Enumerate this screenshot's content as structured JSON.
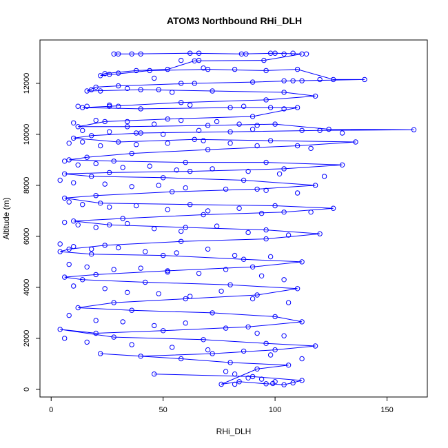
{
  "chart_data": {
    "type": "scatter",
    "title": "ATOM3 Northbound RHi_DLH",
    "xlabel": "RHi_DLH",
    "ylabel": "Altitude (m)",
    "xlim": [
      -5,
      168
    ],
    "ylim": [
      -300,
      13700
    ],
    "xticks": [
      0,
      50,
      100,
      150
    ],
    "yticks": [
      0,
      2000,
      4000,
      6000,
      8000,
      10000,
      12000
    ],
    "grid": false,
    "legend": "none",
    "series": [
      {
        "color": "#0000ff",
        "mode": "lines+markers",
        "points": [
          [
            28,
            13150
          ],
          [
            36,
            13150
          ],
          [
            62,
            13180
          ],
          [
            85,
            13150
          ],
          [
            100,
            13180
          ],
          [
            112,
            13150
          ],
          [
            95,
            12900
          ],
          [
            64,
            12880
          ],
          [
            52,
            12550
          ],
          [
            38,
            12500
          ],
          [
            24,
            12380
          ],
          [
            22,
            12300
          ],
          [
            44,
            12500
          ],
          [
            70,
            12550
          ],
          [
            96,
            12500
          ],
          [
            110,
            12550
          ],
          [
            126,
            12150
          ],
          [
            140,
            12150
          ],
          [
            108,
            12100
          ],
          [
            90,
            12050
          ],
          [
            64,
            12000
          ],
          [
            30,
            11900
          ],
          [
            20,
            11850
          ],
          [
            16,
            11700
          ],
          [
            40,
            11750
          ],
          [
            72,
            11700
          ],
          [
            104,
            11650
          ],
          [
            118,
            11500
          ],
          [
            96,
            11350
          ],
          [
            58,
            11250
          ],
          [
            26,
            11100
          ],
          [
            14,
            11050
          ],
          [
            40,
            11000
          ],
          [
            80,
            11050
          ],
          [
            110,
            11050
          ],
          [
            90,
            10700
          ],
          [
            52,
            10600
          ],
          [
            24,
            10500
          ],
          [
            12,
            10300
          ],
          [
            34,
            10300
          ],
          [
            70,
            10350
          ],
          [
            100,
            10400
          ],
          [
            124,
            10200
          ],
          [
            162,
            10180
          ],
          [
            120,
            10150
          ],
          [
            80,
            10100
          ],
          [
            40,
            10050
          ],
          [
            18,
            9950
          ],
          [
            10,
            9850
          ],
          [
            30,
            9700
          ],
          [
            64,
            9800
          ],
          [
            98,
            9750
          ],
          [
            136,
            9700
          ],
          [
            110,
            9550
          ],
          [
            70,
            9400
          ],
          [
            36,
            9250
          ],
          [
            16,
            9100
          ],
          [
            8,
            9000
          ],
          [
            28,
            8950
          ],
          [
            60,
            8900
          ],
          [
            96,
            8900
          ],
          [
            130,
            8800
          ],
          [
            104,
            8650
          ],
          [
            62,
            8550
          ],
          [
            26,
            8500
          ],
          [
            6,
            8450
          ],
          [
            18,
            8350
          ],
          [
            50,
            8300
          ],
          [
            86,
            8200
          ],
          [
            118,
            8000
          ],
          [
            92,
            7850
          ],
          [
            54,
            7750
          ],
          [
            20,
            7600
          ],
          [
            6,
            7500
          ],
          [
            22,
            7300
          ],
          [
            62,
            7250
          ],
          [
            100,
            7200
          ],
          [
            126,
            7100
          ],
          [
            104,
            6950
          ],
          [
            68,
            6850
          ],
          [
            32,
            6700
          ],
          [
            10,
            6600
          ],
          [
            26,
            6450
          ],
          [
            60,
            6350
          ],
          [
            96,
            6250
          ],
          [
            120,
            6100
          ],
          [
            96,
            5900
          ],
          [
            58,
            5800
          ],
          [
            24,
            5650
          ],
          [
            8,
            5500
          ],
          [
            4,
            5400
          ],
          [
            18,
            5300
          ],
          [
            50,
            5250
          ],
          [
            86,
            5100
          ],
          [
            112,
            5000
          ],
          [
            90,
            4800
          ],
          [
            52,
            4650
          ],
          [
            20,
            4500
          ],
          [
            6,
            4400
          ],
          [
            14,
            4300
          ],
          [
            42,
            4200
          ],
          [
            80,
            4100
          ],
          [
            110,
            3950
          ],
          [
            92,
            3700
          ],
          [
            60,
            3550
          ],
          [
            28,
            3400
          ],
          [
            12,
            3200
          ],
          [
            36,
            3100
          ],
          [
            72,
            3000
          ],
          [
            100,
            2850
          ],
          [
            112,
            2650
          ],
          [
            88,
            2450
          ],
          [
            50,
            2300
          ],
          [
            20,
            2200
          ],
          [
            4,
            2350
          ],
          [
            28,
            2050
          ],
          [
            68,
            1950
          ],
          [
            96,
            1800
          ],
          [
            118,
            1700
          ],
          [
            100,
            1550
          ],
          [
            72,
            1400
          ],
          [
            40,
            1300
          ],
          [
            22,
            1400
          ],
          [
            58,
            1200
          ],
          [
            80,
            1050
          ],
          [
            106,
            950
          ],
          [
            92,
            800
          ],
          [
            76,
            200
          ],
          [
            84,
            300
          ],
          [
            96,
            220
          ],
          [
            104,
            180
          ],
          [
            112,
            350
          ],
          [
            90,
            500
          ],
          [
            46,
            600
          ]
        ]
      },
      {
        "color": "#0000ff",
        "mode": "markers",
        "points": [
          [
            30,
            13150
          ],
          [
            40,
            13150
          ],
          [
            66,
            13180
          ],
          [
            87,
            13150
          ],
          [
            98,
            13180
          ],
          [
            104,
            13150
          ],
          [
            108,
            13180
          ],
          [
            114,
            13150
          ],
          [
            58,
            12900
          ],
          [
            66,
            12900
          ],
          [
            68,
            12600
          ],
          [
            82,
            12550
          ],
          [
            26,
            12350
          ],
          [
            30,
            12400
          ],
          [
            46,
            12200
          ],
          [
            58,
            12000
          ],
          [
            104,
            12100
          ],
          [
            112,
            12100
          ],
          [
            120,
            12150
          ],
          [
            18,
            11750
          ],
          [
            22,
            11700
          ],
          [
            34,
            11800
          ],
          [
            48,
            11750
          ],
          [
            54,
            11650
          ],
          [
            12,
            11100
          ],
          [
            16,
            11100
          ],
          [
            26,
            11150
          ],
          [
            30,
            11100
          ],
          [
            62,
            11150
          ],
          [
            86,
            11100
          ],
          [
            98,
            11050
          ],
          [
            104,
            11000
          ],
          [
            10,
            10450
          ],
          [
            20,
            10550
          ],
          [
            34,
            10500
          ],
          [
            46,
            10400
          ],
          [
            58,
            10550
          ],
          [
            74,
            10500
          ],
          [
            84,
            10400
          ],
          [
            92,
            10350
          ],
          [
            14,
            10150
          ],
          [
            26,
            10100
          ],
          [
            38,
            10050
          ],
          [
            50,
            10000
          ],
          [
            66,
            10150
          ],
          [
            90,
            10200
          ],
          [
            112,
            10150
          ],
          [
            130,
            10050
          ],
          [
            8,
            9650
          ],
          [
            14,
            9700
          ],
          [
            22,
            9550
          ],
          [
            38,
            9600
          ],
          [
            52,
            9650
          ],
          [
            68,
            9750
          ],
          [
            80,
            9650
          ],
          [
            92,
            9550
          ],
          [
            116,
            9450
          ],
          [
            6,
            8950
          ],
          [
            12,
            8800
          ],
          [
            20,
            8850
          ],
          [
            32,
            8700
          ],
          [
            44,
            8750
          ],
          [
            56,
            8600
          ],
          [
            72,
            8650
          ],
          [
            88,
            8550
          ],
          [
            102,
            8450
          ],
          [
            122,
            8350
          ],
          [
            4,
            8200
          ],
          [
            10,
            8100
          ],
          [
            24,
            8050
          ],
          [
            36,
            7950
          ],
          [
            48,
            8000
          ],
          [
            60,
            7900
          ],
          [
            78,
            7850
          ],
          [
            96,
            7800
          ],
          [
            110,
            7700
          ],
          [
            8,
            7350
          ],
          [
            14,
            7250
          ],
          [
            26,
            7150
          ],
          [
            38,
            7200
          ],
          [
            52,
            7050
          ],
          [
            70,
            7000
          ],
          [
            84,
            7100
          ],
          [
            94,
            6900
          ],
          [
            116,
            6950
          ],
          [
            6,
            6550
          ],
          [
            12,
            6450
          ],
          [
            20,
            6350
          ],
          [
            34,
            6500
          ],
          [
            46,
            6300
          ],
          [
            58,
            6200
          ],
          [
            74,
            6400
          ],
          [
            88,
            6150
          ],
          [
            106,
            6050
          ],
          [
            4,
            5700
          ],
          [
            10,
            5600
          ],
          [
            18,
            5500
          ],
          [
            30,
            5550
          ],
          [
            42,
            5400
          ],
          [
            56,
            5350
          ],
          [
            70,
            5500
          ],
          [
            82,
            5250
          ],
          [
            98,
            5200
          ],
          [
            8,
            4900
          ],
          [
            16,
            4800
          ],
          [
            28,
            4700
          ],
          [
            40,
            4750
          ],
          [
            52,
            4600
          ],
          [
            66,
            4550
          ],
          [
            78,
            4700
          ],
          [
            94,
            4450
          ],
          [
            104,
            4300
          ],
          [
            10,
            4050
          ],
          [
            24,
            3950
          ],
          [
            34,
            3800
          ],
          [
            48,
            3750
          ],
          [
            62,
            3650
          ],
          [
            76,
            3850
          ],
          [
            90,
            3550
          ],
          [
            106,
            3400
          ],
          [
            8,
            2900
          ],
          [
            20,
            2700
          ],
          [
            32,
            2650
          ],
          [
            46,
            2500
          ],
          [
            60,
            2600
          ],
          [
            78,
            2400
          ],
          [
            92,
            2200
          ],
          [
            104,
            2100
          ],
          [
            6,
            2000
          ],
          [
            16,
            1850
          ],
          [
            36,
            1750
          ],
          [
            54,
            1650
          ],
          [
            70,
            1550
          ],
          [
            86,
            1500
          ],
          [
            98,
            1350
          ],
          [
            112,
            1200
          ],
          [
            78,
            700
          ],
          [
            82,
            600
          ],
          [
            88,
            450
          ],
          [
            94,
            400
          ],
          [
            100,
            300
          ],
          [
            108,
            250
          ],
          [
            82,
            200
          ],
          [
            99,
            230
          ]
        ]
      }
    ]
  }
}
